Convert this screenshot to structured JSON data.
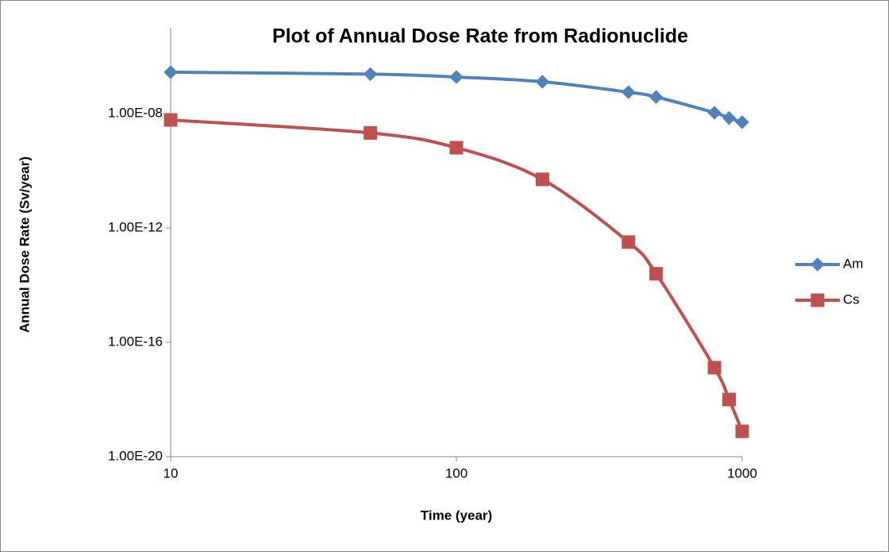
{
  "chart_data": {
    "type": "line",
    "title": "Plot of Annual Dose Rate from Radionuclide",
    "x_label": "Time (year)",
    "y_label": "Annual Dose Rate (Sv/year)",
    "x": [
      10,
      50,
      100,
      200,
      400,
      500,
      800,
      900,
      1000
    ],
    "series": [
      {
        "name": "Am",
        "color": "#4f81bd",
        "marker": "diamond",
        "values": [
          2.8e-07,
          2.4e-07,
          1.9e-07,
          1.3e-07,
          5.6e-08,
          3.8e-08,
          1.07e-08,
          7e-09,
          5e-09
        ]
      },
      {
        "name": "Cs",
        "color": "#c0504d",
        "marker": "square",
        "values": [
          6e-09,
          2.1e-09,
          6.4e-10,
          5e-11,
          3.2e-13,
          2.5e-14,
          1.3e-17,
          1e-18,
          7.7e-20
        ]
      }
    ],
    "xscale": "log",
    "yscale": "log",
    "xlim": [
      10,
      1000
    ],
    "ylim": [
      1e-20,
      1e-05
    ],
    "xticks": [
      10,
      100,
      1000
    ],
    "yticks": [
      {
        "value": 1e-20,
        "label": "1.00E-20"
      },
      {
        "value": 1e-16,
        "label": "1.00E-16"
      },
      {
        "value": 1e-12,
        "label": "1.00E-12"
      },
      {
        "value": 1e-08,
        "label": "1.00E-08"
      }
    ],
    "grid": false,
    "legend": "right"
  }
}
